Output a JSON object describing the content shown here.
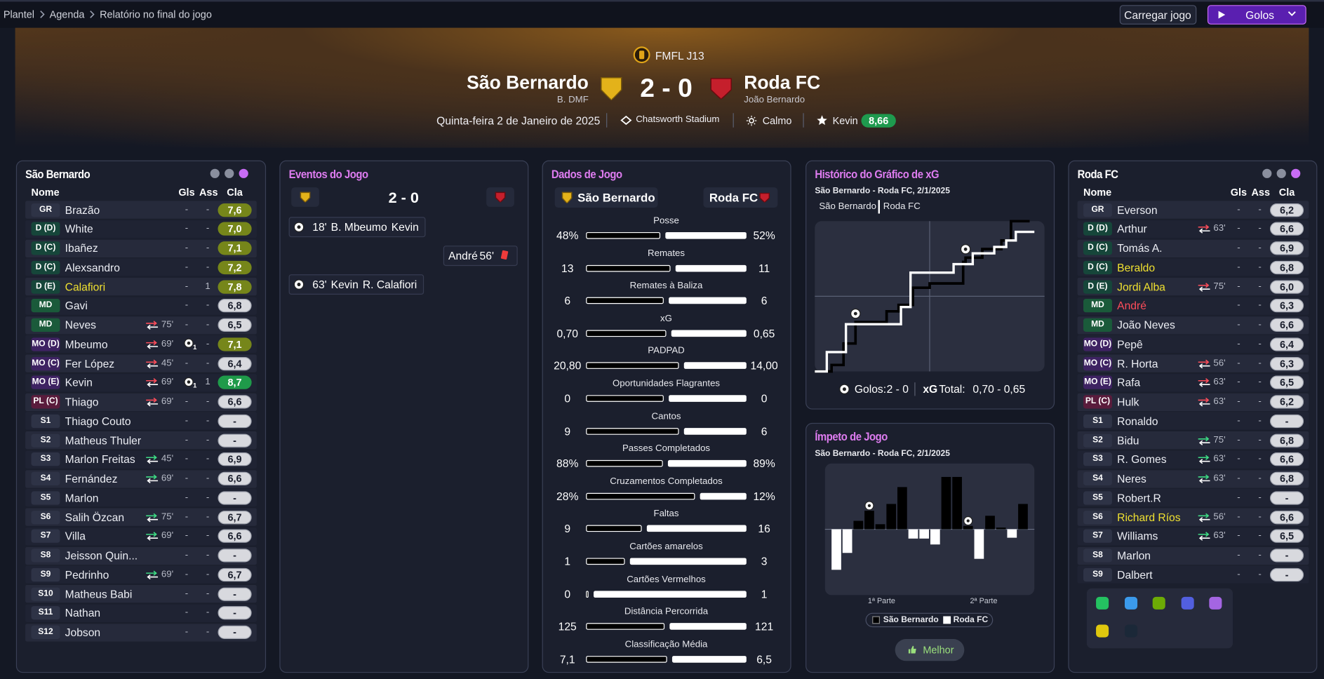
{
  "breadcrumb": [
    "Plantel",
    "Agenda",
    "Relatório no final do jogo"
  ],
  "buttons": {
    "load": "Carregar jogo",
    "mode": "Golos"
  },
  "header": {
    "competition": "FMFL J13",
    "home": {
      "name": "São Bernardo",
      "manager": "B. DMF"
    },
    "away": {
      "name": "Roda FC",
      "manager": "João Bernardo"
    },
    "score": "2 - 0",
    "date": "Quinta-feira 2 de Janeiro de 2025",
    "stadium": "Chatsworth Stadium",
    "weather": "Calmo",
    "best_player": "Kevin",
    "best_rating": "8,66"
  },
  "player_columns": [
    "Nome",
    "Gls",
    "Ass",
    "Cla"
  ],
  "home_players": {
    "title": "São Bernardo",
    "rows": [
      {
        "pos": "GR",
        "name": "Brazão",
        "gls": "-",
        "ass": "-",
        "rating": "7,6"
      },
      {
        "pos": "D (D)",
        "name": "White",
        "gls": "-",
        "ass": "-",
        "rating": "7,0"
      },
      {
        "pos": "D (C)",
        "name": "Ibañez",
        "gls": "-",
        "ass": "-",
        "rating": "7,1"
      },
      {
        "pos": "D (C)",
        "name": "Alexsandro",
        "gls": "-",
        "ass": "-",
        "rating": "7,2"
      },
      {
        "pos": "D (E)",
        "name": "Calafiori",
        "name_color": "#f0e130",
        "gls": "-",
        "ass": "1",
        "rating": "7,8"
      },
      {
        "pos": "MD",
        "name": "Gavi",
        "gls": "-",
        "ass": "-",
        "rating": "6,8"
      },
      {
        "pos": "MD",
        "name": "Neves",
        "sub": {
          "dir": "off",
          "minute": "75'"
        },
        "gls": "-",
        "ass": "-",
        "rating": "6,5"
      },
      {
        "pos": "MO (D)",
        "name": "Mbeumo",
        "sub": {
          "dir": "off",
          "minute": "69'"
        },
        "gls": "1",
        "ass": "-",
        "rating": "7,1"
      },
      {
        "pos": "MO (C)",
        "name": "Fer López",
        "sub": {
          "dir": "off",
          "minute": "45'"
        },
        "gls": "-",
        "ass": "-",
        "rating": "6,4"
      },
      {
        "pos": "MO (E)",
        "name": "Kevin",
        "sub": {
          "dir": "off",
          "minute": "69'"
        },
        "gls": "1",
        "ass": "1",
        "rating": "8,7"
      },
      {
        "pos": "PL (C)",
        "name": "Thiago",
        "sub": {
          "dir": "off",
          "minute": "69'"
        },
        "gls": "-",
        "ass": "-",
        "rating": "6,6"
      },
      {
        "pos": "S1",
        "name": "Thiago Couto",
        "gls": "-",
        "ass": "-",
        "rating": "-"
      },
      {
        "pos": "S2",
        "name": "Matheus Thuler",
        "gls": "-",
        "ass": "-",
        "rating": "-"
      },
      {
        "pos": "S3",
        "name": "Marlon Freitas",
        "sub": {
          "dir": "on",
          "minute": "45'"
        },
        "gls": "-",
        "ass": "-",
        "rating": "6,9"
      },
      {
        "pos": "S4",
        "name": "Fernández",
        "sub": {
          "dir": "on",
          "minute": "69'"
        },
        "gls": "-",
        "ass": "-",
        "rating": "6,6"
      },
      {
        "pos": "S5",
        "name": "Marlon",
        "gls": "-",
        "ass": "-",
        "rating": "-"
      },
      {
        "pos": "S6",
        "name": "Salih Özcan",
        "sub": {
          "dir": "on",
          "minute": "75'"
        },
        "gls": "-",
        "ass": "-",
        "rating": "6,7"
      },
      {
        "pos": "S7",
        "name": "Villa",
        "sub": {
          "dir": "on",
          "minute": "69'"
        },
        "gls": "-",
        "ass": "-",
        "rating": "6,6"
      },
      {
        "pos": "S8",
        "name": "Jeisson Quin...",
        "gls": "-",
        "ass": "-",
        "rating": "-"
      },
      {
        "pos": "S9",
        "name": "Pedrinho",
        "sub": {
          "dir": "on",
          "minute": "69'"
        },
        "gls": "-",
        "ass": "-",
        "rating": "6,7"
      },
      {
        "pos": "S10",
        "name": "Matheus Babi",
        "gls": "-",
        "ass": "-",
        "rating": "-"
      },
      {
        "pos": "S11",
        "name": "Nathan",
        "gls": "-",
        "ass": "-",
        "rating": "-"
      },
      {
        "pos": "S12",
        "name": "Jobson",
        "gls": "-",
        "ass": "-",
        "rating": "-"
      }
    ]
  },
  "away_players": {
    "title": "Roda FC",
    "rows": [
      {
        "pos": "GR",
        "name": "Everson",
        "gls": "-",
        "ass": "-",
        "rating": "6,2"
      },
      {
        "pos": "D (D)",
        "name": "Arthur",
        "sub": {
          "dir": "off",
          "minute": "63'"
        },
        "gls": "-",
        "ass": "-",
        "rating": "6,6"
      },
      {
        "pos": "D (C)",
        "name": "Tomás A.",
        "gls": "-",
        "ass": "-",
        "rating": "6,9"
      },
      {
        "pos": "D (C)",
        "name": "Beraldo",
        "name_color": "#f0e130",
        "gls": "-",
        "ass": "-",
        "rating": "6,8"
      },
      {
        "pos": "D (E)",
        "name": "Jordi Alba",
        "name_color": "#f0e130",
        "sub": {
          "dir": "off",
          "minute": "75'"
        },
        "gls": "-",
        "ass": "-",
        "rating": "6,0"
      },
      {
        "pos": "MD",
        "name": "André",
        "name_color": "#ff4d5a",
        "gls": "-",
        "ass": "-",
        "rating": "6,3"
      },
      {
        "pos": "MD",
        "name": "João Neves",
        "gls": "-",
        "ass": "-",
        "rating": "6,6"
      },
      {
        "pos": "MO (D)",
        "name": "Pepê",
        "gls": "-",
        "ass": "-",
        "rating": "6,4"
      },
      {
        "pos": "MO (C)",
        "name": "R. Horta",
        "sub": {
          "dir": "off",
          "minute": "56'"
        },
        "gls": "-",
        "ass": "-",
        "rating": "6,3"
      },
      {
        "pos": "MO (E)",
        "name": "Rafa",
        "sub": {
          "dir": "off",
          "minute": "63'"
        },
        "gls": "-",
        "ass": "-",
        "rating": "6,5"
      },
      {
        "pos": "PL (C)",
        "name": "Hulk",
        "sub": {
          "dir": "off",
          "minute": "63'"
        },
        "gls": "-",
        "ass": "-",
        "rating": "6,2"
      },
      {
        "pos": "S1",
        "name": "Ronaldo",
        "gls": "-",
        "ass": "-",
        "rating": "-"
      },
      {
        "pos": "S2",
        "name": "Bidu",
        "sub": {
          "dir": "on",
          "minute": "75'"
        },
        "gls": "-",
        "ass": "-",
        "rating": "6,8"
      },
      {
        "pos": "S3",
        "name": "R. Gomes",
        "sub": {
          "dir": "on",
          "minute": "63'"
        },
        "gls": "-",
        "ass": "-",
        "rating": "6,6"
      },
      {
        "pos": "S4",
        "name": "Neres",
        "sub": {
          "dir": "on",
          "minute": "63'"
        },
        "gls": "-",
        "ass": "-",
        "rating": "6,8"
      },
      {
        "pos": "S5",
        "name": "Robert.R",
        "gls": "-",
        "ass": "-",
        "rating": "-"
      },
      {
        "pos": "S6",
        "name": "Richard Ríos",
        "name_color": "#f0e130",
        "sub": {
          "dir": "on",
          "minute": "56'"
        },
        "gls": "-",
        "ass": "-",
        "rating": "6,6"
      },
      {
        "pos": "S7",
        "name": "Williams",
        "sub": {
          "dir": "on",
          "minute": "63'"
        },
        "gls": "-",
        "ass": "-",
        "rating": "6,5"
      },
      {
        "pos": "S8",
        "name": "Marlon",
        "gls": "-",
        "ass": "-",
        "rating": "-"
      },
      {
        "pos": "S9",
        "name": "Dalbert",
        "gls": "-",
        "ass": "-",
        "rating": "-"
      }
    ]
  },
  "events": {
    "title": "Eventos do Jogo",
    "items": [
      {
        "side": "home",
        "type": "goal",
        "minute": "18'",
        "player": "B. Mbeumo",
        "assist": "Kevin"
      },
      {
        "side": "away",
        "type": "red-card",
        "player": "André",
        "minute": "56'"
      },
      {
        "side": "home",
        "type": "goal",
        "minute": "63'",
        "player": "Kevin",
        "assist": "R. Calafiori"
      }
    ]
  },
  "stats": {
    "title": "Dados de Jogo",
    "rows": [
      {
        "label": "Posse",
        "home": "48%",
        "away": "52%"
      },
      {
        "label": "Remates",
        "home": "13",
        "away": "11"
      },
      {
        "label": "Remates à Baliza",
        "home": "6",
        "away": "6"
      },
      {
        "label": "xG",
        "home": "0,70",
        "away": "0,65"
      },
      {
        "label": "PADPAD",
        "home": "20,80",
        "away": "14,00"
      },
      {
        "label": "Oportunidades Flagrantes",
        "home": "0",
        "away": "0"
      },
      {
        "label": "Cantos",
        "home": "9",
        "away": "6"
      },
      {
        "label": "Passes Completados",
        "home": "88%",
        "away": "89%"
      },
      {
        "label": "Cruzamentos Completados",
        "home": "28%",
        "away": "12%"
      },
      {
        "label": "Faltas",
        "home": "9",
        "away": "16"
      },
      {
        "label": "Cartões amarelos",
        "home": "1",
        "away": "3"
      },
      {
        "label": "Cartões Vermelhos",
        "home": "0",
        "away": "1"
      },
      {
        "label": "Distância Percorrida",
        "home": "125",
        "away": "121"
      },
      {
        "label": "Classificação Média",
        "home": "7,1",
        "away": "6,5"
      }
    ]
  },
  "xg_chart": {
    "title": "Histórico do Gráfico de xG",
    "subtitle": "São Bernardo - Roda FC, 2/1/2025",
    "xlim": [
      0,
      96
    ],
    "ylim": [
      0,
      0.7
    ],
    "series": [
      {
        "name": "São Bernardo",
        "color": "#000000",
        "shots": [
          {
            "minute": 7,
            "xg": 0.03
          },
          {
            "minute": 12,
            "xg": 0.1
          },
          {
            "minute": 17,
            "xg": 0.1,
            "goal": true
          },
          {
            "minute": 30,
            "xg": 0.05
          },
          {
            "minute": 35,
            "xg": 0.03
          },
          {
            "minute": 41,
            "xg": 0.08
          },
          {
            "minute": 48,
            "xg": 0.02
          },
          {
            "minute": 62,
            "xg": 0.1
          },
          {
            "minute": 63,
            "xg": 0.02,
            "goal": true
          },
          {
            "minute": 70,
            "xg": 0.04
          },
          {
            "minute": 78,
            "xg": 0.04
          },
          {
            "minute": 82,
            "xg": 0.09
          }
        ]
      },
      {
        "name": "Roda FC",
        "color": "#ffffff",
        "shots": [
          {
            "minute": 5,
            "xg": 0.09
          },
          {
            "minute": 13,
            "xg": 0.13
          },
          {
            "minute": 36,
            "xg": 0.08
          },
          {
            "minute": 40,
            "xg": 0.16
          },
          {
            "minute": 58,
            "xg": 0.04
          },
          {
            "minute": 66,
            "xg": 0.05
          },
          {
            "minute": 75,
            "xg": 0.03
          },
          {
            "minute": 80,
            "xg": 0.03
          },
          {
            "minute": 84,
            "xg": 0.04
          }
        ]
      }
    ],
    "goals_label": "Golos:",
    "xg_label": "xG",
    "total_label": "Total:",
    "xg_total": "0,70 - 0,65"
  },
  "momentum_chart": {
    "title": "Ímpeto de Jogo",
    "subtitle": "São Bernardo - Roda FC, 2/1/2025",
    "ylim": [
      -78,
      78
    ],
    "home_color": "#000000",
    "away_color": "#ffffff",
    "bars": [
      {
        "value": -48
      },
      {
        "value": -28
      },
      {
        "value": 10
      },
      {
        "value": 22,
        "goal": true
      },
      {
        "value": 6
      },
      {
        "value": 30
      },
      {
        "value": 50
      },
      {
        "value": -11
      },
      {
        "value": -11
      },
      {
        "value": -18
      },
      {
        "value": 62
      },
      {
        "value": 62
      },
      {
        "value": 4,
        "goal": true
      },
      {
        "value": -35
      },
      {
        "value": 16
      },
      {
        "value": 2
      },
      {
        "value": -10
      },
      {
        "value": 30
      }
    ],
    "periods": [
      "1ª Parte",
      "2ª Parte"
    ],
    "button": "Melhor"
  }
}
